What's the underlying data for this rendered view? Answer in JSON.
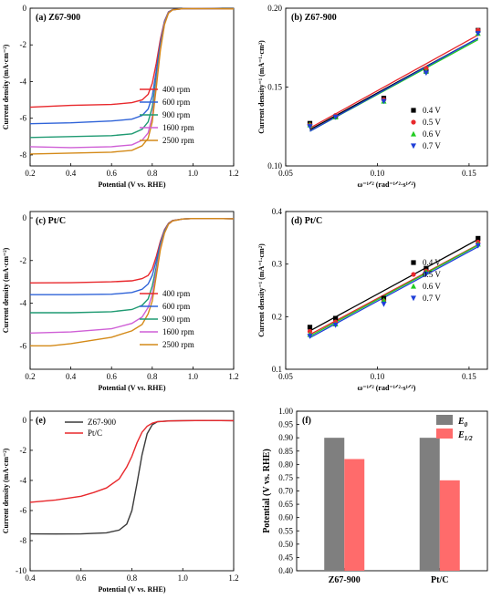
{
  "chart_data": [
    {
      "id": "a",
      "type": "line",
      "title": "(a) Z67-900",
      "xlabel": "Potential  (V vs. RHE)",
      "ylabel": "Current density  (mA·cm⁻²)",
      "xlim": [
        0.2,
        1.2
      ],
      "ylim": [
        -8.6,
        0
      ],
      "xticks": [
        "0.2",
        "0.4",
        "0.6",
        "0.8",
        "1.0",
        "1.2"
      ],
      "yticks": [
        "0",
        "-2",
        "-4",
        "-6",
        "-8"
      ],
      "legend_position": "bottom-right",
      "series": [
        {
          "name": "400 rpm",
          "color": "#e8282c",
          "x": [
            0.2,
            0.4,
            0.6,
            0.7,
            0.75,
            0.78,
            0.8,
            0.82,
            0.84,
            0.86,
            0.88,
            0.9,
            0.95,
            1.0,
            1.1,
            1.2
          ],
          "y": [
            -5.4,
            -5.3,
            -5.25,
            -5.15,
            -5.0,
            -4.7,
            -4.1,
            -3.0,
            -1.7,
            -0.7,
            -0.2,
            -0.08,
            -0.03,
            -0.02,
            -0.03,
            -0.04
          ]
        },
        {
          "name": "600 rpm",
          "color": "#2f63d8",
          "x": [
            0.2,
            0.4,
            0.6,
            0.7,
            0.75,
            0.78,
            0.8,
            0.82,
            0.84,
            0.86,
            0.88,
            0.9,
            0.95,
            1.0,
            1.1,
            1.2
          ],
          "y": [
            -6.3,
            -6.25,
            -6.15,
            -6.05,
            -5.85,
            -5.5,
            -4.8,
            -3.4,
            -1.9,
            -0.75,
            -0.22,
            -0.08,
            -0.03,
            -0.02,
            -0.03,
            -0.04
          ]
        },
        {
          "name": "900 rpm",
          "color": "#1f9a72",
          "x": [
            0.2,
            0.4,
            0.6,
            0.7,
            0.75,
            0.78,
            0.8,
            0.82,
            0.84,
            0.86,
            0.88,
            0.9,
            0.95,
            1.0,
            1.1,
            1.2
          ],
          "y": [
            -7.05,
            -7.0,
            -6.95,
            -6.85,
            -6.6,
            -6.2,
            -5.4,
            -3.8,
            -2.1,
            -0.8,
            -0.25,
            -0.09,
            -0.03,
            -0.02,
            -0.03,
            -0.04
          ]
        },
        {
          "name": "1600 rpm",
          "color": "#cf5fd6",
          "x": [
            0.2,
            0.4,
            0.6,
            0.7,
            0.75,
            0.78,
            0.8,
            0.82,
            0.84,
            0.86,
            0.88,
            0.9,
            0.95,
            1.0,
            1.1,
            1.2
          ],
          "y": [
            -7.55,
            -7.6,
            -7.55,
            -7.45,
            -7.2,
            -6.8,
            -5.9,
            -4.1,
            -2.2,
            -0.85,
            -0.26,
            -0.09,
            -0.03,
            -0.02,
            -0.03,
            -0.04
          ]
        },
        {
          "name": "2500 rpm",
          "color": "#d48a18",
          "x": [
            0.2,
            0.4,
            0.6,
            0.7,
            0.75,
            0.78,
            0.8,
            0.82,
            0.84,
            0.86,
            0.88,
            0.9,
            0.95,
            1.0,
            1.1,
            1.2
          ],
          "y": [
            -7.95,
            -7.9,
            -7.85,
            -7.75,
            -7.5,
            -7.1,
            -6.2,
            -4.3,
            -2.3,
            -0.9,
            -0.27,
            -0.09,
            -0.03,
            -0.02,
            -0.03,
            -0.04
          ]
        }
      ]
    },
    {
      "id": "b",
      "type": "scatter",
      "title": "(b) Z67-900",
      "xlabel": "ω⁻¹ᐟ²  (rad⁻¹ᐟ²·s¹ᐟ²)",
      "ylabel": "Current density⁻¹  (mA⁻¹·cm²)",
      "xlim": [
        0.05,
        0.16
      ],
      "ylim": [
        0.1,
        0.2
      ],
      "xticks": [
        "0.05",
        "0.10",
        "0.15"
      ],
      "yticks": [
        "0.10",
        "0.15",
        "0.20"
      ],
      "legend_position": "bottom-right",
      "x": [
        0.0632,
        0.0772,
        0.1035,
        0.1266,
        0.1549
      ],
      "series": [
        {
          "name": "0.4 V",
          "color": "#000000",
          "marker": "square",
          "y": [
            0.127,
            0.131,
            0.143,
            0.16,
            0.186
          ],
          "fit": [
            0.123,
            0.181
          ]
        },
        {
          "name": "0.5 V",
          "color": "#e8282c",
          "marker": "circle",
          "y": [
            0.126,
            0.132,
            0.142,
            0.162,
            0.186
          ],
          "fit": [
            0.124,
            0.183
          ]
        },
        {
          "name": "0.6 V",
          "color": "#22cc22",
          "marker": "triangle-up",
          "y": [
            0.126,
            0.131,
            0.141,
            0.16,
            0.184
          ],
          "fit": [
            0.122,
            0.18
          ]
        },
        {
          "name": "0.7 V",
          "color": "#1f3fd8",
          "marker": "triangle-down",
          "y": [
            0.125,
            0.131,
            0.141,
            0.159,
            0.184
          ],
          "fit": [
            0.122,
            0.181
          ]
        }
      ]
    },
    {
      "id": "c",
      "type": "line",
      "title": "(c) Pt/C",
      "xlabel": "Potential  (V vs. RHE)",
      "ylabel": "Current density  (mA·cm⁻²)",
      "xlim": [
        0.2,
        1.2
      ],
      "ylim": [
        -7.1,
        0.3
      ],
      "xticks": [
        "0.2",
        "0.4",
        "0.6",
        "0.8",
        "1.0",
        "1.2"
      ],
      "yticks": [
        "0",
        "-2",
        "-4",
        "-6"
      ],
      "legend_position": "bottom-right",
      "series": [
        {
          "name": "400 rpm",
          "color": "#e8282c",
          "x": [
            0.2,
            0.4,
            0.6,
            0.7,
            0.75,
            0.78,
            0.8,
            0.82,
            0.84,
            0.86,
            0.88,
            0.9,
            0.95,
            1.0,
            1.1,
            1.2
          ],
          "y": [
            -3.05,
            -3.04,
            -3.0,
            -2.95,
            -2.85,
            -2.7,
            -2.4,
            -1.8,
            -1.1,
            -0.55,
            -0.25,
            -0.12,
            -0.05,
            -0.03,
            -0.03,
            -0.04
          ]
        },
        {
          "name": "600 rpm",
          "color": "#2f63d8",
          "x": [
            0.2,
            0.4,
            0.6,
            0.7,
            0.75,
            0.78,
            0.8,
            0.82,
            0.84,
            0.86,
            0.88,
            0.9,
            0.95,
            1.0,
            1.1,
            1.2
          ],
          "y": [
            -3.6,
            -3.6,
            -3.58,
            -3.5,
            -3.35,
            -3.1,
            -2.7,
            -2.0,
            -1.2,
            -0.6,
            -0.27,
            -0.13,
            -0.05,
            -0.03,
            -0.03,
            -0.04
          ]
        },
        {
          "name": "900 rpm",
          "color": "#1f9a72",
          "x": [
            0.2,
            0.4,
            0.6,
            0.7,
            0.75,
            0.78,
            0.8,
            0.82,
            0.84,
            0.86,
            0.88,
            0.9,
            0.95,
            1.0,
            1.1,
            1.2
          ],
          "y": [
            -4.45,
            -4.45,
            -4.4,
            -4.3,
            -4.1,
            -3.8,
            -3.2,
            -2.3,
            -1.3,
            -0.65,
            -0.28,
            -0.13,
            -0.05,
            -0.03,
            -0.03,
            -0.04
          ]
        },
        {
          "name": "1600 rpm",
          "color": "#cf5fd6",
          "x": [
            0.2,
            0.4,
            0.6,
            0.7,
            0.75,
            0.78,
            0.8,
            0.82,
            0.84,
            0.86,
            0.88,
            0.9,
            0.95,
            1.0,
            1.1,
            1.2
          ],
          "y": [
            -5.4,
            -5.35,
            -5.2,
            -4.95,
            -4.65,
            -4.2,
            -3.6,
            -2.5,
            -1.4,
            -0.7,
            -0.3,
            -0.14,
            -0.05,
            -0.03,
            -0.03,
            -0.04
          ]
        },
        {
          "name": "2500 rpm",
          "color": "#d48a18",
          "x": [
            0.2,
            0.3,
            0.4,
            0.5,
            0.6,
            0.7,
            0.75,
            0.78,
            0.8,
            0.82,
            0.84,
            0.86,
            0.88,
            0.9,
            0.95,
            1.0,
            1.1,
            1.2
          ],
          "y": [
            -6.0,
            -6.0,
            -5.9,
            -5.75,
            -5.6,
            -5.3,
            -5.0,
            -4.5,
            -3.9,
            -2.7,
            -1.5,
            -0.72,
            -0.3,
            -0.14,
            -0.05,
            -0.03,
            -0.03,
            -0.04
          ]
        }
      ]
    },
    {
      "id": "d",
      "type": "scatter",
      "title": "(d) Pt/C",
      "xlabel": "ω⁻¹ᐟ²  (rad⁻¹ᐟ²·s¹ᐟ²)",
      "ylabel": "Current density⁻¹  (mA⁻¹·cm²)",
      "xlim": [
        0.05,
        0.16
      ],
      "ylim": [
        0.1,
        0.4
      ],
      "xticks": [
        "0.05",
        "0.10",
        "0.15"
      ],
      "yticks": [
        "0.1",
        "0.2",
        "0.3",
        "0.4"
      ],
      "legend_position": "bottom-right",
      "x": [
        0.0632,
        0.0772,
        0.1035,
        0.1266,
        0.1549
      ],
      "series": [
        {
          "name": "0.4 V",
          "color": "#000000",
          "marker": "square",
          "y": [
            0.18,
            0.197,
            0.235,
            0.292,
            0.349
          ],
          "fit": [
            0.173,
            0.347
          ]
        },
        {
          "name": "0.5 V",
          "color": "#e8282c",
          "marker": "circle",
          "y": [
            0.172,
            0.19,
            0.23,
            0.287,
            0.342
          ],
          "fit": [
            0.166,
            0.337
          ]
        },
        {
          "name": "0.6 V",
          "color": "#22cc22",
          "marker": "triangle-up",
          "y": [
            0.166,
            0.186,
            0.231,
            0.285,
            0.338
          ],
          "fit": [
            0.163,
            0.336
          ]
        },
        {
          "name": "0.7 V",
          "color": "#1f3fd8",
          "marker": "triangle-down",
          "y": [
            0.163,
            0.184,
            0.224,
            0.281,
            0.335
          ],
          "fit": [
            0.16,
            0.333
          ]
        }
      ]
    },
    {
      "id": "e",
      "type": "line",
      "title": "(e)",
      "xlabel": "Potential  (V vs. RHE)",
      "ylabel": "Current density  (mA·cm⁻²)",
      "xlim": [
        0.4,
        1.2
      ],
      "ylim": [
        -10,
        0.6
      ],
      "xticks": [
        "0.4",
        "0.6",
        "0.8",
        "1.0",
        "1.2"
      ],
      "yticks": [
        "0",
        "-2",
        "-4",
        "-6",
        "-8",
        "-10"
      ],
      "legend_position": "top-left",
      "series": [
        {
          "name": "Z67-900",
          "color": "#3a3a3a",
          "x": [
            0.4,
            0.5,
            0.6,
            0.7,
            0.75,
            0.78,
            0.8,
            0.82,
            0.84,
            0.86,
            0.88,
            0.9,
            0.95,
            1.0,
            1.1,
            1.2
          ],
          "y": [
            -7.55,
            -7.56,
            -7.55,
            -7.48,
            -7.3,
            -6.9,
            -6.0,
            -4.2,
            -2.3,
            -0.9,
            -0.3,
            -0.1,
            -0.04,
            -0.03,
            -0.02,
            -0.03
          ]
        },
        {
          "name": "Pt/C",
          "color": "#e8282c",
          "x": [
            0.4,
            0.5,
            0.6,
            0.65,
            0.7,
            0.75,
            0.78,
            0.8,
            0.82,
            0.84,
            0.86,
            0.88,
            0.9,
            0.95,
            1.0,
            1.1,
            1.2
          ],
          "y": [
            -5.45,
            -5.3,
            -5.05,
            -4.8,
            -4.5,
            -3.9,
            -3.1,
            -2.4,
            -1.5,
            -0.8,
            -0.4,
            -0.2,
            -0.1,
            -0.05,
            -0.03,
            -0.02,
            -0.03
          ]
        }
      ]
    },
    {
      "id": "f",
      "type": "bar",
      "title": "(f)",
      "xlabel": "",
      "ylabel": "Potential  (V vs. RHE)",
      "ylim": [
        0.4,
        1.0
      ],
      "yticks": [
        "0.40",
        "0.45",
        "0.50",
        "0.55",
        "0.60",
        "0.65",
        "0.70",
        "0.75",
        "0.80",
        "0.85",
        "0.90",
        "0.95",
        "1.00"
      ],
      "categories": [
        "Z67-900",
        "Pt/C"
      ],
      "legend_position": "top-right",
      "series": [
        {
          "name": "E",
          "sub": "0",
          "color": "#7f7f7f",
          "values": [
            0.9,
            0.9
          ]
        },
        {
          "name": "E",
          "sub": "1/2",
          "color": "#ff6b6b",
          "values": [
            0.82,
            0.74
          ]
        }
      ]
    }
  ]
}
